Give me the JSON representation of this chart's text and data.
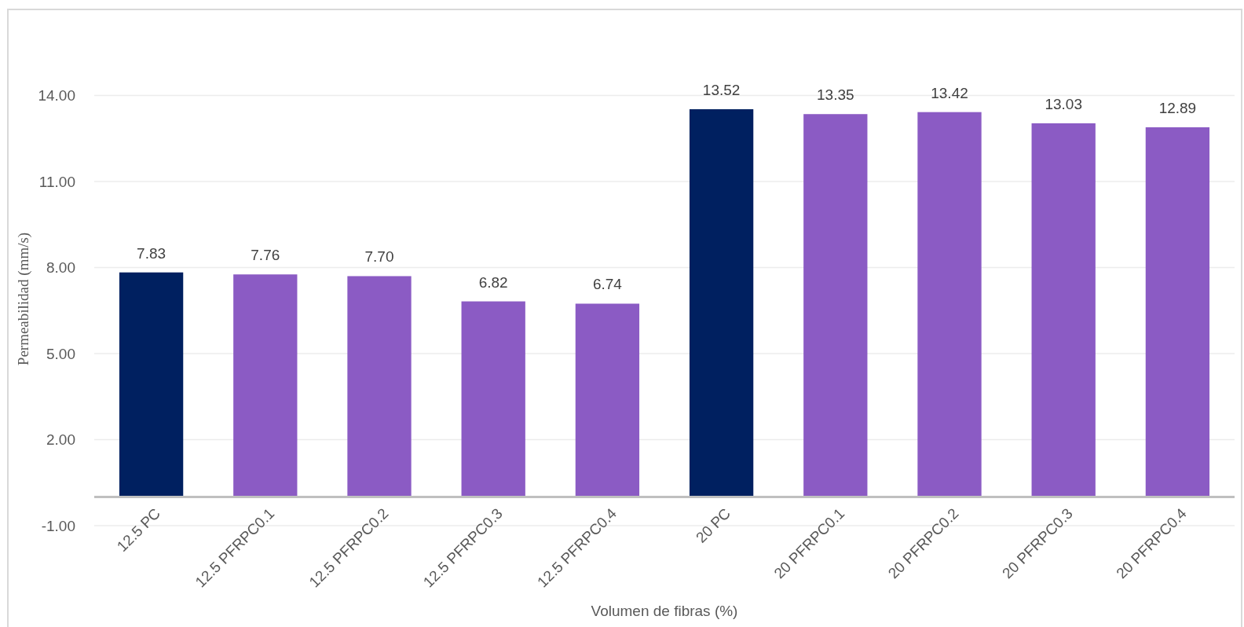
{
  "chart_data": {
    "type": "bar",
    "xlabel": "Volumen de fibras (%)",
    "ylabel": "Permeabilidad (mm/s)",
    "categories": [
      "12.5 PC",
      "12.5 PFRPC0.1",
      "12.5 PFRPC0.2",
      "12.5 PFRPC0.3",
      "12.5 PFRPC0.4",
      "20 PC",
      "20 PFRPC0.1",
      "20 PFRPC0.2",
      "20 PFRPC0.3",
      "20 PFRPC0.4"
    ],
    "values": [
      7.83,
      7.76,
      7.7,
      6.82,
      6.74,
      13.52,
      13.35,
      13.42,
      13.03,
      12.89
    ],
    "colors": [
      "#002060",
      "#8b5bc4",
      "#8b5bc4",
      "#8b5bc4",
      "#8b5bc4",
      "#002060",
      "#8b5bc4",
      "#8b5bc4",
      "#8b5bc4",
      "#8b5bc4"
    ],
    "value_labels": [
      "7.83",
      "7.76",
      "7.70",
      "6.82",
      "6.74",
      "13.52",
      "13.35",
      "13.42",
      "13.03",
      "12.89"
    ],
    "ylim": [
      -1,
      17
    ],
    "yticks": [
      {
        "value": -1,
        "label": "-1.00"
      },
      {
        "value": 2,
        "label": "2.00"
      },
      {
        "value": 5,
        "label": "5.00"
      },
      {
        "value": 8,
        "label": "8.00"
      },
      {
        "value": 11,
        "label": "11.00"
      },
      {
        "value": 14,
        "label": "14.00"
      }
    ],
    "grid": "y"
  }
}
